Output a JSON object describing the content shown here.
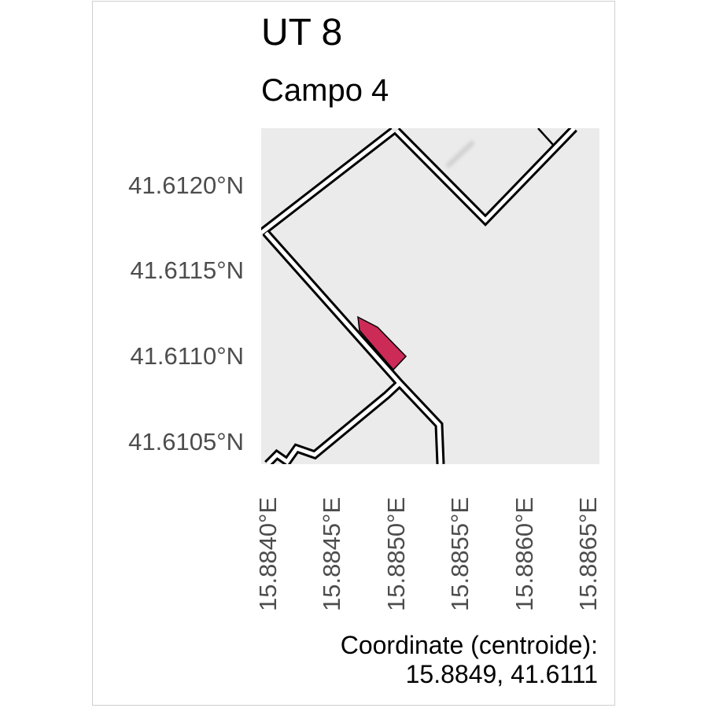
{
  "title": "UT 8",
  "subtitle": "Campo 4",
  "y_ticks": [
    "41.6120°N",
    "41.6115°N",
    "41.6110°N",
    "41.6105°N"
  ],
  "x_ticks": [
    "15.8840°E",
    "15.8845°E",
    "15.8850°E",
    "15.8855°E",
    "15.8860°E",
    "15.8865°E"
  ],
  "caption": {
    "line1": "Coordinate (centroide):",
    "line2": "15.8849, 41.6111"
  },
  "colors": {
    "map_background": "#ebebeb",
    "parcel_fill": "#cc2a57",
    "road_outline": "#000000",
    "road_fill": "#ffffff"
  },
  "centroid": {
    "lon": 15.8849,
    "lat": 41.6111
  }
}
